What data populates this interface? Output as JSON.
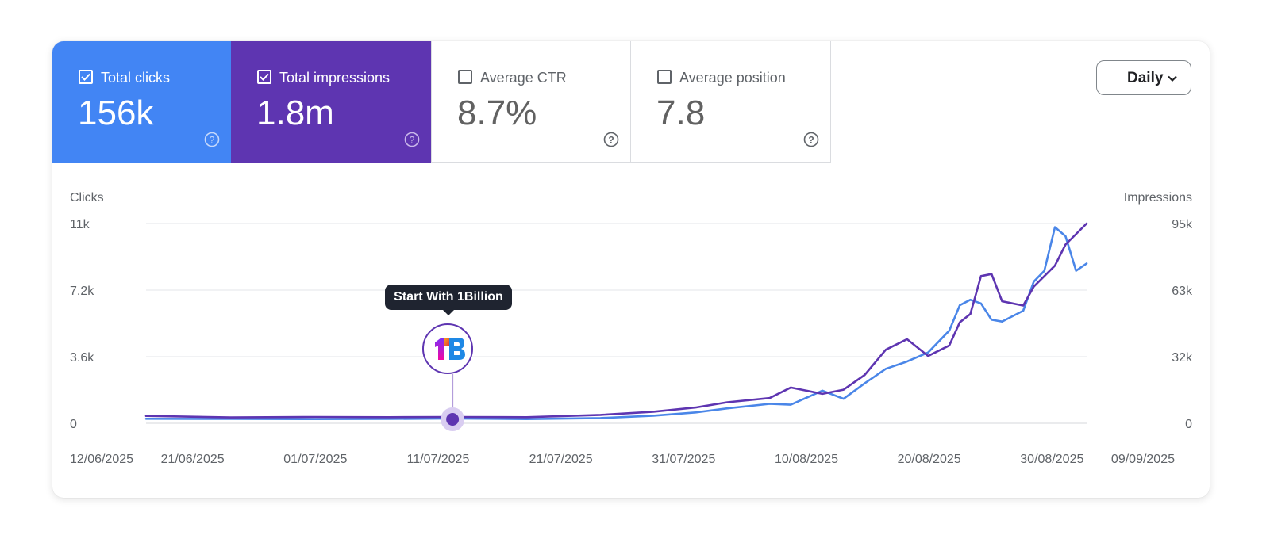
{
  "metrics": [
    {
      "label": "Total clicks",
      "value": "156k",
      "checked": true,
      "color": "#4285f4"
    },
    {
      "label": "Total impressions",
      "value": "1.8m",
      "checked": true,
      "color": "#5e35b1"
    },
    {
      "label": "Average CTR",
      "value": "8.7%",
      "checked": false
    },
    {
      "label": "Average position",
      "value": "7.8",
      "checked": false
    }
  ],
  "period_selector": {
    "value": "Daily"
  },
  "annotation": {
    "label": "Start With 1Billion",
    "date": "11/07/2025"
  },
  "chart_data": {
    "type": "line",
    "left_axis_title": "Clicks",
    "right_axis_title": "Impressions",
    "left_ticks": [
      "11k",
      "7.2k",
      "3.6k",
      "0"
    ],
    "right_ticks": [
      "95k",
      "63k",
      "32k",
      "0"
    ],
    "left_ylim": [
      0,
      11000
    ],
    "right_ylim": [
      0,
      95000
    ],
    "x_ticks": [
      "12/06/2025",
      "21/06/2025",
      "01/07/2025",
      "11/07/2025",
      "21/07/2025",
      "31/07/2025",
      "10/08/2025",
      "20/08/2025",
      "30/08/2025",
      "09/09/2025"
    ],
    "x_range": [
      "2025-06-12",
      "2025-09-09"
    ],
    "series": [
      {
        "name": "Clicks",
        "axis": "left",
        "color": "#4a86e8",
        "points": [
          [
            "2025-06-12",
            250
          ],
          [
            "2025-06-20",
            240
          ],
          [
            "2025-06-28",
            230
          ],
          [
            "2025-07-05",
            240
          ],
          [
            "2025-07-11",
            260
          ],
          [
            "2025-07-18",
            230
          ],
          [
            "2025-07-25",
            290
          ],
          [
            "2025-07-30",
            420
          ],
          [
            "2025-08-03",
            600
          ],
          [
            "2025-08-06",
            820
          ],
          [
            "2025-08-10",
            1070
          ],
          [
            "2025-08-12",
            1020
          ],
          [
            "2025-08-15",
            1800
          ],
          [
            "2025-08-17",
            1350
          ],
          [
            "2025-08-19",
            2200
          ],
          [
            "2025-08-21",
            3000
          ],
          [
            "2025-08-23",
            3400
          ],
          [
            "2025-08-25",
            3900
          ],
          [
            "2025-08-27",
            5100
          ],
          [
            "2025-08-28",
            6500
          ],
          [
            "2025-08-29",
            6800
          ],
          [
            "2025-08-30",
            6600
          ],
          [
            "2025-08-31",
            5700
          ],
          [
            "2025-09-01",
            5600
          ],
          [
            "2025-09-03",
            6200
          ],
          [
            "2025-09-04",
            7800
          ],
          [
            "2025-09-05",
            8400
          ],
          [
            "2025-09-06",
            10800
          ],
          [
            "2025-09-07",
            10300
          ],
          [
            "2025-09-08",
            8400
          ],
          [
            "2025-09-09",
            8800
          ]
        ]
      },
      {
        "name": "Impressions",
        "axis": "right",
        "color": "#5e35b1",
        "points": [
          [
            "2025-06-12",
            3500
          ],
          [
            "2025-06-20",
            2800
          ],
          [
            "2025-06-28",
            3000
          ],
          [
            "2025-07-05",
            2900
          ],
          [
            "2025-07-11",
            3000
          ],
          [
            "2025-07-18",
            2900
          ],
          [
            "2025-07-25",
            4000
          ],
          [
            "2025-07-30",
            5500
          ],
          [
            "2025-08-03",
            7500
          ],
          [
            "2025-08-06",
            10000
          ],
          [
            "2025-08-10",
            12000
          ],
          [
            "2025-08-12",
            17000
          ],
          [
            "2025-08-15",
            14000
          ],
          [
            "2025-08-17",
            16000
          ],
          [
            "2025-08-19",
            23000
          ],
          [
            "2025-08-21",
            35000
          ],
          [
            "2025-08-23",
            40000
          ],
          [
            "2025-08-25",
            32000
          ],
          [
            "2025-08-27",
            37000
          ],
          [
            "2025-08-28",
            48000
          ],
          [
            "2025-08-29",
            52000
          ],
          [
            "2025-08-30",
            70000
          ],
          [
            "2025-08-31",
            71000
          ],
          [
            "2025-09-01",
            58000
          ],
          [
            "2025-09-03",
            56000
          ],
          [
            "2025-09-04",
            65000
          ],
          [
            "2025-09-06",
            75000
          ],
          [
            "2025-09-07",
            85000
          ],
          [
            "2025-09-09",
            95000
          ]
        ]
      }
    ]
  }
}
